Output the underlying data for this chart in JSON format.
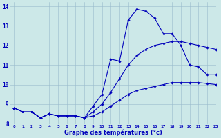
{
  "xlabel": "Graphe des températures (°c)",
  "xlim": [
    -0.5,
    23
  ],
  "ylim": [
    8,
    14.2
  ],
  "yticks": [
    8,
    9,
    10,
    11,
    12,
    13,
    14
  ],
  "xticks": [
    0,
    1,
    2,
    3,
    4,
    5,
    6,
    7,
    8,
    9,
    10,
    11,
    12,
    13,
    14,
    15,
    16,
    17,
    18,
    19,
    20,
    21,
    22,
    23
  ],
  "background_color": "#cce8e8",
  "line_color": "#0000bb",
  "grid_color": "#99bbcc",
  "line1_x": [
    0,
    1,
    2,
    3,
    4,
    5,
    6,
    7,
    8,
    9,
    10,
    11,
    12,
    13,
    14,
    15,
    16,
    17,
    18,
    19,
    20,
    21,
    22,
    23
  ],
  "line1_y": [
    8.8,
    8.6,
    8.6,
    8.3,
    8.5,
    8.4,
    8.4,
    8.4,
    8.3,
    8.9,
    9.5,
    11.3,
    11.2,
    13.3,
    13.85,
    13.75,
    13.4,
    12.6,
    12.6,
    12.0,
    11.0,
    10.9,
    10.5,
    10.5
  ],
  "line2_x": [
    0,
    1,
    2,
    3,
    4,
    5,
    6,
    7,
    8,
    9,
    10,
    11,
    12,
    13,
    14,
    15,
    16,
    17,
    18,
    19,
    20,
    21,
    22,
    23
  ],
  "line2_y": [
    8.8,
    8.6,
    8.6,
    8.3,
    8.5,
    8.4,
    8.4,
    8.4,
    8.3,
    8.6,
    9.0,
    9.6,
    10.3,
    11.0,
    11.5,
    11.8,
    12.0,
    12.1,
    12.2,
    12.2,
    12.1,
    12.0,
    11.9,
    11.8
  ],
  "line3_x": [
    0,
    1,
    2,
    3,
    4,
    5,
    6,
    7,
    8,
    9,
    10,
    11,
    12,
    13,
    14,
    15,
    16,
    17,
    18,
    19,
    20,
    21,
    22,
    23
  ],
  "line3_y": [
    8.8,
    8.6,
    8.6,
    8.3,
    8.5,
    8.4,
    8.4,
    8.4,
    8.3,
    8.4,
    8.6,
    8.9,
    9.2,
    9.5,
    9.7,
    9.8,
    9.9,
    10.0,
    10.1,
    10.1,
    10.1,
    10.1,
    10.05,
    10.0
  ]
}
